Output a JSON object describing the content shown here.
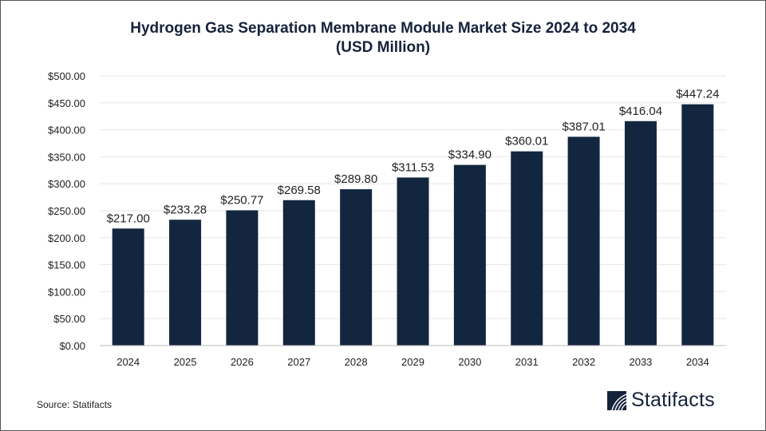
{
  "title_line1": "Hydrogen Gas Separation Membrane Module Market Size 2024 to 2034",
  "title_line2": "(USD Million)",
  "source": "Source: Statifacts",
  "logo_text": "Statifacts",
  "colors": {
    "bar": "#13263f",
    "grid": "#e6e6e6",
    "text": "#222222"
  },
  "chart_data": {
    "type": "bar",
    "title": "Hydrogen Gas Separation Membrane Module Market Size 2024 to 2034 (USD Million)",
    "categories": [
      "2024",
      "2025",
      "2026",
      "2027",
      "2028",
      "2029",
      "2030",
      "2031",
      "2032",
      "2033",
      "2034"
    ],
    "values": [
      217.0,
      233.28,
      250.77,
      269.58,
      289.8,
      311.53,
      334.9,
      360.01,
      387.01,
      416.04,
      447.24
    ],
    "data_labels": [
      "$217.00",
      "$233.28",
      "$250.77",
      "$269.58",
      "$289.80",
      "$311.53",
      "$334.90",
      "$360.01",
      "$387.01",
      "$416.04",
      "$447.24"
    ],
    "ylim": [
      0,
      500
    ],
    "yticks": [
      0,
      50,
      100,
      150,
      200,
      250,
      300,
      350,
      400,
      450,
      500
    ],
    "ytick_labels": [
      "$0.00",
      "$50.00",
      "$100.00",
      "$150.00",
      "$200.00",
      "$250.00",
      "$300.00",
      "$350.00",
      "$400.00",
      "$450.00",
      "$500.00"
    ],
    "xlabel": "",
    "ylabel": "",
    "grid": true,
    "legend": "none"
  }
}
